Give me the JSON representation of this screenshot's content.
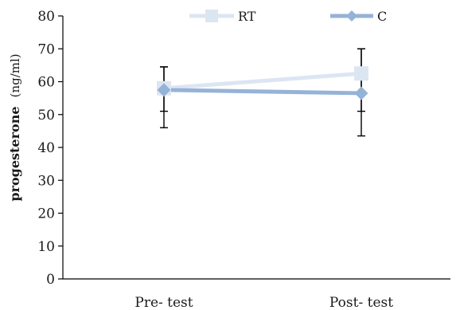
{
  "chart_data": {
    "type": "line",
    "categories": [
      "Pre- test",
      "Post- test"
    ],
    "ylabel": "progesterone",
    "ylabel_unit": "(ng/ml)",
    "ylim": [
      0,
      80
    ],
    "yticks": [
      0,
      10,
      20,
      30,
      40,
      50,
      60,
      70,
      80
    ],
    "grid": false,
    "legend": "top",
    "series": [
      {
        "name": "RT",
        "values": [
          58,
          62.5
        ],
        "errors": [
          [
            12,
            11.5
          ],
          [
            6.5,
            7.5
          ]
        ],
        "color": "#dce6f2",
        "marker": "square"
      },
      {
        "name": "C",
        "values": [
          57.5,
          56.5
        ],
        "errors": [
          [
            6.5,
            13
          ],
          [
            7,
            13.5
          ]
        ],
        "color": "#95b3d7",
        "marker": "diamond"
      }
    ]
  }
}
